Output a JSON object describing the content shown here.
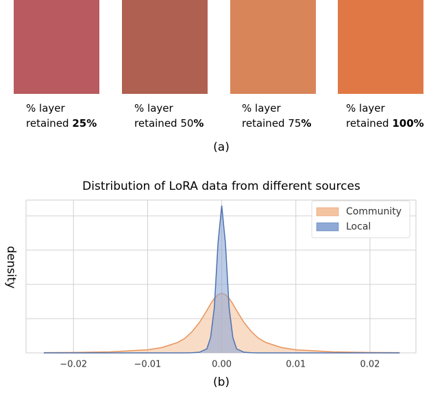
{
  "figure_a": {
    "caption": "(a)",
    "panels": [
      {
        "line1": "% layer",
        "line2": "retained ",
        "line2_bold": "25%"
      },
      {
        "line1": "% layer",
        "line2": "retained 50",
        "line2_bold": "%"
      },
      {
        "line1": "% layer",
        "line2": "retained 75",
        "line2_bold": "%"
      },
      {
        "line1": "% layer",
        "line2": "retained ",
        "line2_bold": "100%"
      }
    ]
  },
  "chart_data": {
    "type": "area",
    "title": "Distribution of LoRA data from different sources",
    "y_label": "density",
    "caption": "(b)",
    "x": [
      -0.024,
      -0.02,
      -0.015,
      -0.01,
      -0.008,
      -0.006,
      -0.005,
      -0.004,
      -0.003,
      -0.002,
      -0.0015,
      -0.001,
      -0.0005,
      0,
      0.0005,
      0.001,
      0.0015,
      0.002,
      0.003,
      0.004,
      0.005,
      0.006,
      0.008,
      0.01,
      0.015,
      0.02,
      0.024
    ],
    "series": [
      {
        "name": "Community",
        "color": "#e8925a",
        "fill": "#f4c4a0",
        "values": [
          0.008,
          0.013,
          0.03,
          0.089,
          0.16,
          0.3,
          0.42,
          0.62,
          0.89,
          1.24,
          1.43,
          1.59,
          1.7,
          1.74,
          1.7,
          1.59,
          1.43,
          1.24,
          0.89,
          0.62,
          0.42,
          0.3,
          0.16,
          0.089,
          0.03,
          0.013,
          0.008
        ]
      },
      {
        "name": "Local",
        "color": "#4c72b0",
        "fill": "#8fa8d6",
        "values": [
          0,
          0,
          0,
          0,
          0,
          0,
          0,
          0.005,
          0.02,
          0.12,
          0.45,
          1.32,
          3.2,
          4.3,
          3.2,
          1.32,
          0.45,
          0.12,
          0.02,
          0.005,
          0,
          0,
          0,
          0,
          0,
          0,
          0
        ]
      }
    ],
    "xlim": [
      -0.0264,
      0.0262
    ],
    "xticks": [
      {
        "value": -0.02,
        "label": "−0.02"
      },
      {
        "value": -0.01,
        "label": "−0.01"
      },
      {
        "value": 0,
        "label": "0.00"
      },
      {
        "value": 0.01,
        "label": "0.01"
      },
      {
        "value": 0.02,
        "label": "0.02"
      }
    ],
    "ylim": [
      0,
      4.46
    ],
    "yticks": [
      0,
      1,
      2,
      3,
      4
    ],
    "grid": true,
    "legend": "upper right"
  }
}
